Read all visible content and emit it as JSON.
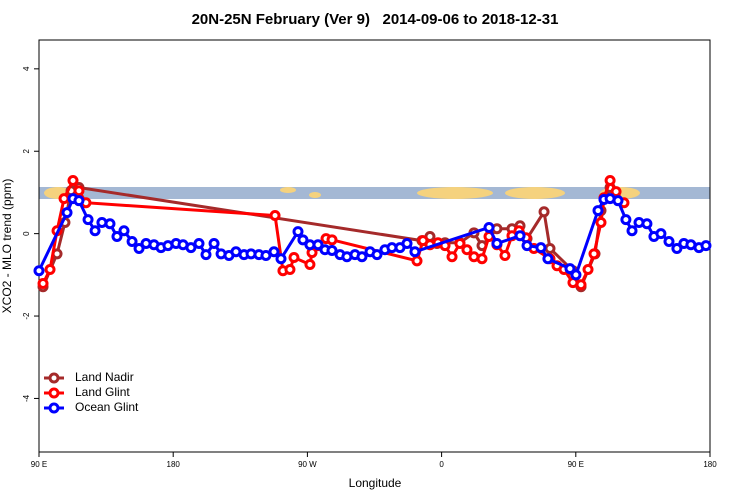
{
  "chart_data": {
    "type": "line",
    "title": "20N-25N February (Ver 9)   2014-09-06 to 2018-12-31",
    "x_label": "Longitude",
    "y_label": "XCO2 - MLO trend (ppm)",
    "xlim": [
      90,
      540
    ],
    "ylim": [
      -5.3,
      4.7
    ],
    "xticks": [
      {
        "value": 90,
        "label": "90 E"
      },
      180,
      {
        "value": 270,
        "label": "90 W"
      },
      {
        "value": 360,
        "label": "0"
      },
      {
        "value": 450,
        "label": "90 E"
      },
      180
    ],
    "yticks": [
      -4,
      -2,
      0,
      2,
      4
    ],
    "legend": "bottom-left",
    "series": [
      {
        "name": "Land Nadir",
        "color": "#a52a2a",
        "x": [
          92.7,
          102.1,
          107.4,
          111.5,
          116.8,
          346.8,
          352.2,
          356.9,
          362.3,
          372.3,
          381.7,
          387.1,
          397.1,
          407.2,
          412.6,
          417.3,
          428.7,
          432.7,
          448.1,
          453.5,
          462.9,
          466.9,
          473.0
        ],
        "values": [
          -1.29,
          -0.49,
          0.27,
          1.04,
          1.12,
          -0.17,
          -0.07,
          -0.24,
          -0.22,
          -0.22,
          0.02,
          -0.29,
          0.12,
          0.12,
          0.19,
          -0.12,
          0.53,
          -0.36,
          -0.9,
          -1.29,
          -0.49,
          0.56,
          1.12
        ]
      },
      {
        "name": "Land Glint",
        "color": "#ff0000",
        "x": [
          92.7,
          97.4,
          102.1,
          106.8,
          112.8,
          116.8,
          121.5,
          248.3,
          253.6,
          258.3,
          261.0,
          271.7,
          273.1,
          277.1,
          282.5,
          286.5,
          343.5,
          347.5,
          352.2,
          357.6,
          362.3,
          367.0,
          372.3,
          377.0,
          381.7,
          387.1,
          391.8,
          397.1,
          402.5,
          407.2,
          411.9,
          416.6,
          421.9,
          432.7,
          437.4,
          442.1,
          448.1,
          453.5,
          458.2,
          462.2,
          466.9,
          468.9,
          473.0,
          477.0,
          482.3
        ],
        "values": [
          -1.21,
          -0.87,
          0.07,
          0.85,
          1.29,
          1.04,
          0.75,
          0.44,
          -0.9,
          -0.87,
          -0.58,
          -0.75,
          -0.46,
          -0.29,
          -0.12,
          -0.15,
          -0.66,
          -0.17,
          -0.27,
          -0.22,
          -0.29,
          -0.56,
          -0.24,
          -0.39,
          -0.56,
          -0.61,
          -0.07,
          -0.27,
          -0.53,
          -0.05,
          0.07,
          -0.1,
          -0.36,
          -0.61,
          -0.78,
          -0.87,
          -1.19,
          -1.24,
          -0.87,
          -0.49,
          0.27,
          0.87,
          1.29,
          1.02,
          0.75
        ]
      },
      {
        "name": "Ocean Glint",
        "color": "#0000ff",
        "x": [
          90,
          108.8,
          112.8,
          116.8,
          122.9,
          127.6,
          132.2,
          137.6,
          142.3,
          147.0,
          152.4,
          157.1,
          161.8,
          167.1,
          171.8,
          176.5,
          181.9,
          186.6,
          191.9,
          197.3,
          202.0,
          207.4,
          212.1,
          217.4,
          222.1,
          227.5,
          232.2,
          237.5,
          242.2,
          247.6,
          252.3,
          263.7,
          267.0,
          271.7,
          277.1,
          281.8,
          286.5,
          291.9,
          296.5,
          301.9,
          306.6,
          312.0,
          316.7,
          322.0,
          326.7,
          332.1,
          336.8,
          342.1,
          391.8,
          397.1,
          412.6,
          417.3,
          426.6,
          431.3,
          446.1,
          450.1,
          464.9,
          468.9,
          473.0,
          478.3,
          483.6,
          487.7,
          492.4,
          497.7,
          502.4,
          507.1,
          512.5,
          517.8,
          522.5,
          527.2,
          532.6,
          537.3
        ],
        "values": [
          -0.9,
          0.51,
          0.85,
          0.8,
          0.34,
          0.07,
          0.27,
          0.24,
          -0.07,
          0.07,
          -0.19,
          -0.36,
          -0.24,
          -0.27,
          -0.34,
          -0.29,
          -0.24,
          -0.27,
          -0.34,
          -0.24,
          -0.51,
          -0.24,
          -0.49,
          -0.53,
          -0.44,
          -0.51,
          -0.49,
          -0.51,
          -0.53,
          -0.44,
          -0.61,
          0.05,
          -0.15,
          -0.27,
          -0.27,
          -0.39,
          -0.41,
          -0.51,
          -0.56,
          -0.51,
          -0.56,
          -0.44,
          -0.51,
          -0.39,
          -0.34,
          -0.34,
          -0.24,
          -0.44,
          0.15,
          -0.24,
          -0.05,
          -0.29,
          -0.34,
          -0.61,
          -0.85,
          -1.0,
          0.56,
          0.83,
          0.85,
          0.8,
          0.34,
          0.07,
          0.27,
          0.24,
          -0.07,
          0.0,
          -0.19,
          -0.36,
          -0.24,
          -0.27,
          -0.34,
          -0.29
        ]
      }
    ]
  }
}
